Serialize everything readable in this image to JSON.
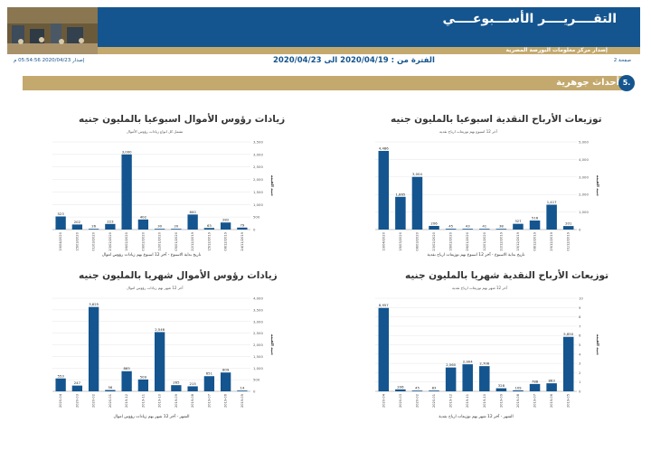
{
  "header": {
    "title": "التقــــريــــر الأســـبوعــــي",
    "subtitle": "إصدار مركز معلومات البورصة المصرية"
  },
  "meta": {
    "page": "صفحة 2",
    "period": "الفترة من : 2020/04/19 الى 2020/04/23",
    "issued": "إصدار 2020/04/23 05:54:56 م"
  },
  "section": {
    "number": "5.",
    "title": "أحداث جوهرية"
  },
  "charts": [
    {
      "title": "توزيعات الأرباح النقدية اسبوعيا بالمليون جنيه",
      "subtitle": "آخر 12 اسبوع بهم توزيعات ارباح نقدية"
    },
    {
      "title": "زيادات رؤوس الأموال اسبوعيا بالمليون جنيه",
      "subtitle": "تشمل كل انواع زيادات رؤوس الأموال"
    },
    {
      "title": "توزيعات الأرباح النقدية شهريا بالمليون جنيه",
      "subtitle": "آخر 12 شهر بهم توزيعات ارباح نقدية"
    },
    {
      "title": "زيادات رؤوس الأموال شهريا بالمليون جنيه",
      "subtitle": "آخر 12 شهر بهم زيادات رؤوس اموال"
    }
  ],
  "chart_data": [
    {
      "type": "bar",
      "ylabel": "جنيه القيمة",
      "xlabel": "تاريخ بداية الاسبوع - آخر 12 اسبوع بهم توزيعات ارباح نقدية",
      "categories": [
        "19/04/2020",
        "15/03/2020",
        "08/03/2020",
        "23/02/2020",
        "16/02/2020",
        "26/01/2020",
        "12/01/2020",
        "22/12/2019",
        "15/12/2019",
        "08/12/2019",
        "29/12/2019",
        "01/12/2019"
      ],
      "values": [
        4486,
        1865,
        3004,
        206,
        45,
        43,
        41,
        38,
        327,
        516,
        1417,
        201
      ],
      "ylim": [
        0,
        5000
      ],
      "ticks": [
        0,
        1000,
        2000,
        3000,
        4000,
        5000
      ],
      "tick_labels": [
        "0",
        "1,000",
        "2,000",
        "3,000",
        "4,000",
        "5,000"
      ]
    },
    {
      "type": "bar",
      "ylabel": "جنيه القيمة",
      "xlabel": "تاريخ بداية الاسبوع - آخر 12 اسبوع بهم زيادات رؤوس اموال",
      "categories": [
        "19/04/2020",
        "15/03/2020",
        "01/03/2020",
        "23/02/2020",
        "16/02/2020",
        "09/02/2020",
        "12/01/2020",
        "05/01/2020",
        "22/12/2019",
        "15/12/2019",
        "08/12/2019",
        "24/11/2019"
      ],
      "values": [
        523,
        202,
        26,
        223,
        3000,
        402,
        30,
        20,
        600,
        63,
        282,
        79
      ],
      "ylim": [
        0,
        3500
      ],
      "ticks": [
        0,
        500,
        1000,
        1500,
        2000,
        2500,
        3000,
        3500
      ],
      "tick_labels": [
        "0",
        "500",
        "1,000",
        "1,500",
        "2,000",
        "2,500",
        "3,000",
        "3,500"
      ]
    },
    {
      "type": "bar",
      "ylabel": "جنيه القيمة",
      "xlabel": "الشهر - آخر 12 شهر بهم توزيعات ارباح نقدية",
      "categories": [
        "2020-04",
        "2020-03",
        "2020-02",
        "2020-01",
        "2019-12",
        "2019-11",
        "2019-10",
        "2019-09",
        "2019-08",
        "2019-07",
        "2019-06",
        "2019-05"
      ],
      "values": [
        8957,
        206,
        45,
        83,
        2560,
        2904,
        2706,
        328,
        109,
        788,
        863,
        5850
      ],
      "ylim": [
        0,
        10000
      ],
      "ticks": [
        0,
        1000,
        2000,
        3000,
        4000,
        5000,
        6000,
        7000,
        8000,
        9000,
        10000
      ],
      "tick_labels": [
        "0",
        "1",
        "2",
        "3",
        "4",
        "5",
        "6",
        "7",
        "8",
        "9",
        "10"
      ]
    },
    {
      "type": "bar",
      "ylabel": "جنيه القيمة",
      "xlabel": "الشهر - آخر 12 شهر بهم زيادات رؤوس اموال",
      "categories": [
        "2020-04",
        "2020-03",
        "2020-02",
        "2020-01",
        "2019-12",
        "2019-11",
        "2019-10",
        "2019-09",
        "2019-08",
        "2019-07",
        "2019-06",
        "2019-05"
      ],
      "values": [
        553,
        247,
        3625,
        56,
        865,
        509,
        2546,
        265,
        215,
        651,
        809,
        14
      ],
      "ylim": [
        0,
        4000
      ],
      "ticks": [
        0,
        500,
        1000,
        1500,
        2000,
        2500,
        3000,
        3500,
        4000
      ],
      "tick_labels": [
        "0",
        "500",
        "1,000",
        "1,500",
        "2,000",
        "2,500",
        "3,000",
        "3,500",
        "4,000"
      ]
    }
  ],
  "colors": {
    "primary": "#14558f",
    "gold": "#c4a96e",
    "bar": "#14558f"
  }
}
